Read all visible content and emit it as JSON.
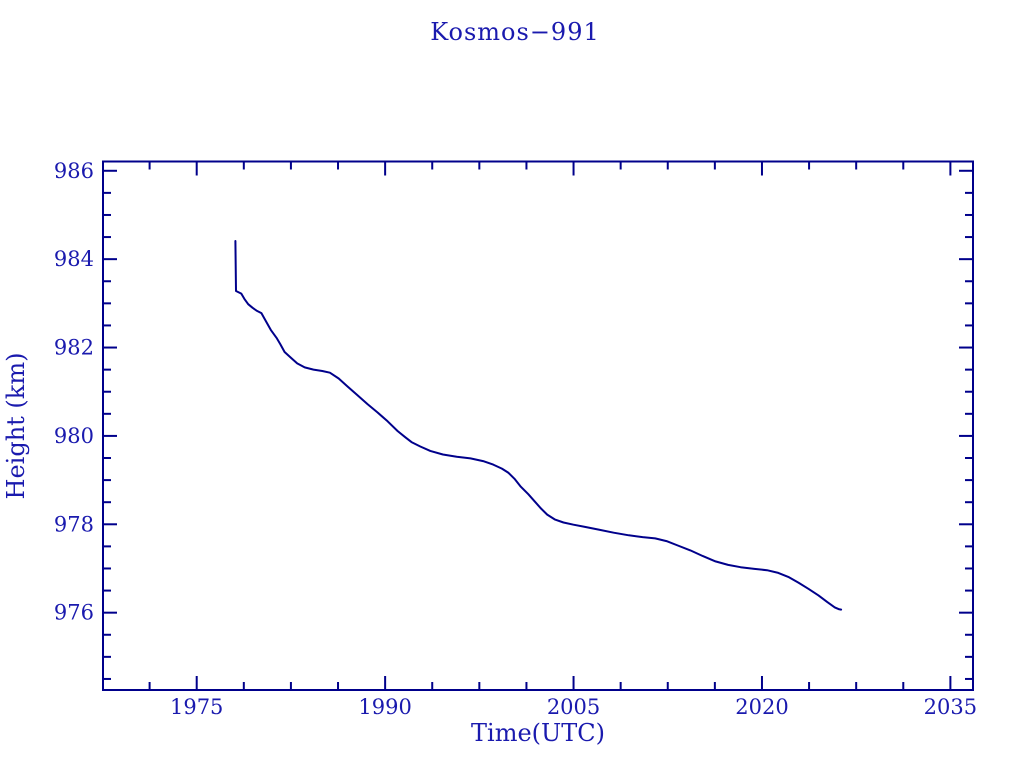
{
  "chart_data": {
    "type": "line",
    "title": "Kosmos−991",
    "xlabel": "Time(UTC)",
    "ylabel": "Height (km)",
    "x_ticks": [
      1975,
      1990,
      2005,
      2020,
      2035
    ],
    "y_ticks": [
      976,
      978,
      980,
      982,
      984,
      986
    ],
    "x_minor_step": 3.75,
    "y_minor_step": 0.5,
    "xlim": [
      1967.54,
      2036.8
    ],
    "ylim": [
      974.25,
      986.21
    ],
    "grid": false,
    "legend": "none",
    "colors": {
      "line": "#00008B",
      "text": "#1A1AAE",
      "background": "#FFFFFF"
    },
    "series": [
      {
        "name": "height",
        "points": [
          [
            1978.08,
            984.41
          ],
          [
            1978.13,
            983.28
          ],
          [
            1978.55,
            983.22
          ],
          [
            1978.8,
            983.1
          ],
          [
            1979.1,
            982.98
          ],
          [
            1979.45,
            982.9
          ],
          [
            1979.8,
            982.83
          ],
          [
            1980.15,
            982.78
          ],
          [
            1980.5,
            982.6
          ],
          [
            1980.9,
            982.4
          ],
          [
            1981.35,
            982.22
          ],
          [
            1981.65,
            982.08
          ],
          [
            1982.0,
            981.9
          ],
          [
            1982.5,
            981.77
          ],
          [
            1983.0,
            981.64
          ],
          [
            1983.6,
            981.55
          ],
          [
            1984.3,
            981.5
          ],
          [
            1985.0,
            981.47
          ],
          [
            1985.6,
            981.43
          ],
          [
            1986.3,
            981.3
          ],
          [
            1987.0,
            981.12
          ],
          [
            1987.8,
            980.92
          ],
          [
            1988.6,
            980.72
          ],
          [
            1989.4,
            980.53
          ],
          [
            1990.2,
            980.33
          ],
          [
            1991.0,
            980.11
          ],
          [
            1991.6,
            979.97
          ],
          [
            1992.1,
            979.86
          ],
          [
            1992.8,
            979.76
          ],
          [
            1993.6,
            979.66
          ],
          [
            1994.6,
            979.58
          ],
          [
            1995.7,
            979.53
          ],
          [
            1996.8,
            979.49
          ],
          [
            1997.8,
            979.43
          ],
          [
            1998.6,
            979.35
          ],
          [
            1999.3,
            979.26
          ],
          [
            1999.8,
            979.17
          ],
          [
            2000.3,
            979.03
          ],
          [
            2000.8,
            978.85
          ],
          [
            2001.4,
            978.68
          ],
          [
            2001.9,
            978.52
          ],
          [
            2002.4,
            978.36
          ],
          [
            2002.9,
            978.22
          ],
          [
            2003.5,
            978.11
          ],
          [
            2004.2,
            978.04
          ],
          [
            2005.0,
            977.99
          ],
          [
            2005.9,
            977.94
          ],
          [
            2007.0,
            977.88
          ],
          [
            2008.2,
            977.81
          ],
          [
            2009.4,
            977.75
          ],
          [
            2010.5,
            977.71
          ],
          [
            2011.5,
            977.68
          ],
          [
            2012.4,
            977.62
          ],
          [
            2013.3,
            977.52
          ],
          [
            2014.3,
            977.41
          ],
          [
            2015.3,
            977.28
          ],
          [
            2016.3,
            977.16
          ],
          [
            2017.3,
            977.08
          ],
          [
            2018.3,
            977.03
          ],
          [
            2019.4,
            976.99
          ],
          [
            2020.4,
            976.96
          ],
          [
            2021.3,
            976.9
          ],
          [
            2022.1,
            976.81
          ],
          [
            2022.9,
            976.68
          ],
          [
            2023.7,
            976.54
          ],
          [
            2024.5,
            976.39
          ],
          [
            2025.2,
            976.24
          ],
          [
            2025.8,
            976.12
          ],
          [
            2026.1,
            976.08
          ],
          [
            2026.3,
            976.07
          ]
        ]
      }
    ]
  }
}
